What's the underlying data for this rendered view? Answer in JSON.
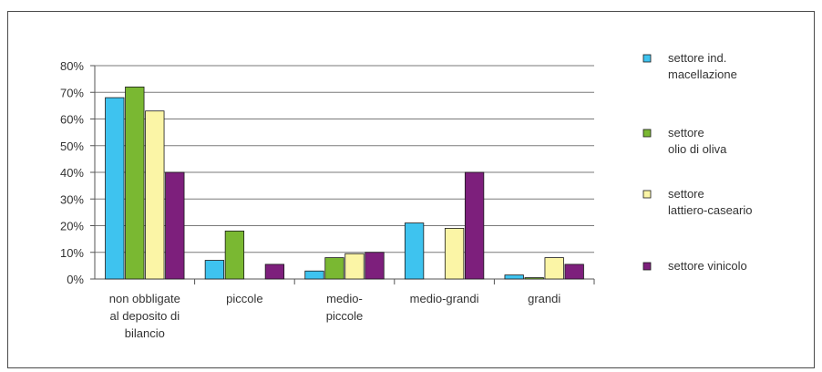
{
  "chart_data": {
    "type": "bar",
    "categories": [
      [
        "non obbligate",
        "al deposito di",
        "bilancio"
      ],
      [
        "piccole"
      ],
      [
        "medio-",
        "piccole"
      ],
      [
        "medio-grandi"
      ],
      [
        "grandi"
      ]
    ],
    "yticks": [
      "0%",
      "10%",
      "20%",
      "30%",
      "40%",
      "50%",
      "60%",
      "70%",
      "80%"
    ],
    "ylim": [
      0,
      80
    ],
    "grid": true,
    "legend_position": "right",
    "series": [
      {
        "name": [
          "settore ind.",
          "macellazione"
        ],
        "color": "#3ec3ef",
        "values": [
          68,
          7,
          3,
          21,
          1.5
        ]
      },
      {
        "name": [
          "settore",
          "olio di oliva"
        ],
        "color": "#7ab832",
        "values": [
          72,
          18,
          8,
          0,
          0.5
        ]
      },
      {
        "name": [
          "settore",
          "lattiero-caseario"
        ],
        "color": "#fbf5a6",
        "values": [
          63,
          0,
          9.5,
          19,
          8
        ]
      },
      {
        "name": [
          "settore  vinicolo"
        ],
        "color": "#7d1f7c",
        "values": [
          40,
          5.5,
          10,
          40,
          5.5
        ]
      }
    ]
  }
}
